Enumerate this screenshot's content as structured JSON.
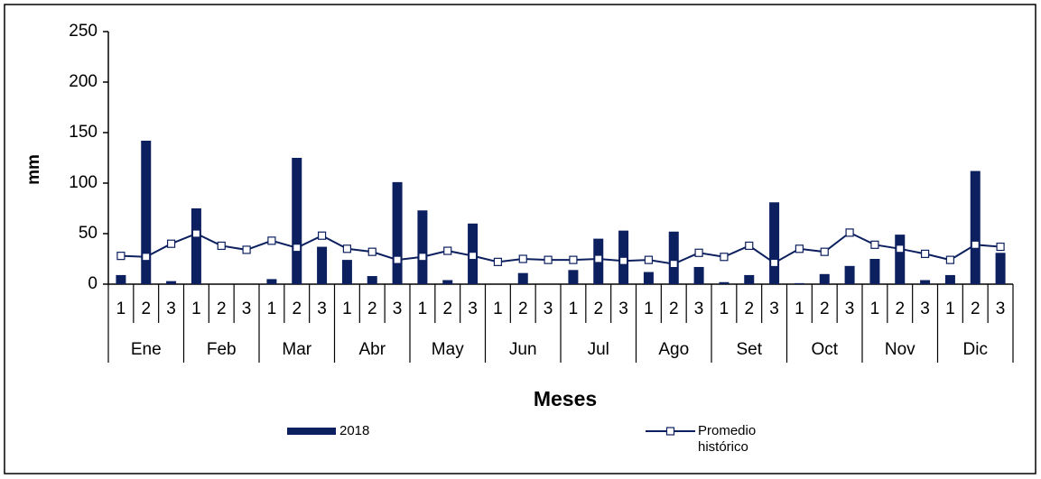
{
  "chart_data": {
    "type": "bar",
    "ylabel": "mm",
    "xlabel": "Meses",
    "categories": [
      "1",
      "2",
      "3",
      "1",
      "2",
      "3",
      "1",
      "2",
      "3",
      "1",
      "2",
      "3",
      "1",
      "2",
      "3",
      "1",
      "2",
      "3",
      "1",
      "2",
      "3",
      "1",
      "2",
      "3",
      "1",
      "2",
      "3",
      "1",
      "2",
      "3",
      "1",
      "2",
      "3",
      "1",
      "2",
      "3"
    ],
    "groups": [
      "Ene",
      "Feb",
      "Mar",
      "Abr",
      "May",
      "Jun",
      "Jul",
      "Ago",
      "Set",
      "Oct",
      "Nov",
      "Dic"
    ],
    "series": [
      {
        "name": "2018",
        "type": "bar",
        "color": "#0c1f5e",
        "values": [
          9,
          142,
          3,
          75,
          0,
          0,
          5,
          125,
          37,
          24,
          8,
          101,
          73,
          4,
          60,
          0,
          11,
          0,
          14,
          45,
          53,
          12,
          52,
          17,
          2,
          9,
          81,
          1,
          10,
          18,
          25,
          49,
          4,
          9,
          112,
          31
        ]
      },
      {
        "name": "Promedio histórico",
        "type": "line",
        "color": "#0c1f5e",
        "marker": "square",
        "values": [
          28,
          27,
          40,
          50,
          38,
          34,
          43,
          36,
          48,
          35,
          32,
          24,
          27,
          33,
          28,
          22,
          25,
          24,
          24,
          25,
          23,
          24,
          20,
          31,
          27,
          38,
          21,
          35,
          32,
          51,
          39,
          35,
          30,
          24,
          39,
          37
        ]
      }
    ],
    "ylim": [
      0,
      250
    ],
    "yticks": [
      0,
      50,
      100,
      150,
      200,
      250
    ]
  }
}
